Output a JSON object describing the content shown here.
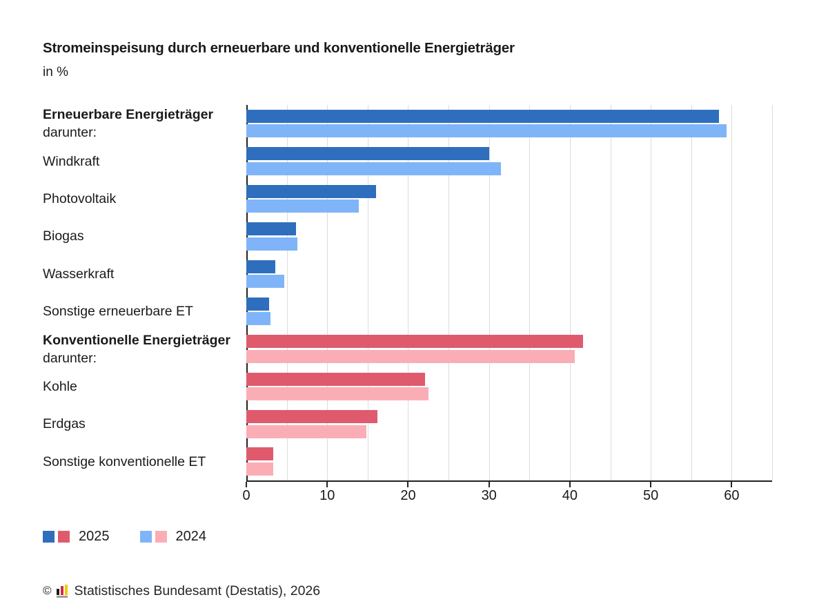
{
  "header": {
    "title": "Stromeinspeisung durch erneuerbare und konventionelle Energieträger",
    "subtitle": "in %"
  },
  "chart_data": {
    "type": "bar",
    "orientation": "horizontal",
    "title": "Stromeinspeisung durch erneuerbare und konventionelle Energieträger",
    "unit": "in %",
    "xlim": [
      0,
      65
    ],
    "x_ticks": [
      0,
      10,
      20,
      30,
      40,
      50,
      60
    ],
    "gridline_step": 5,
    "grid_color": "#dcdcdc",
    "axis_color": "#222222",
    "legend_position": "bottom",
    "categories": [
      {
        "label": "Erneuerbare Energieträger",
        "sublabel": "darunter:",
        "bold": true,
        "group": "renewable"
      },
      {
        "label": "Windkraft",
        "sublabel": "",
        "bold": false,
        "group": "renewable"
      },
      {
        "label": "Photovoltaik",
        "sublabel": "",
        "bold": false,
        "group": "renewable"
      },
      {
        "label": "Biogas",
        "sublabel": "",
        "bold": false,
        "group": "renewable"
      },
      {
        "label": "Wasserkraft",
        "sublabel": "",
        "bold": false,
        "group": "renewable"
      },
      {
        "label": "Sonstige erneuerbare ET",
        "sublabel": "",
        "bold": false,
        "group": "renewable"
      },
      {
        "label": "Konventionelle Energieträger",
        "sublabel": "darunter:",
        "bold": true,
        "group": "conventional"
      },
      {
        "label": "Kohle",
        "sublabel": "",
        "bold": false,
        "group": "conventional"
      },
      {
        "label": "Erdgas",
        "sublabel": "",
        "bold": false,
        "group": "conventional"
      },
      {
        "label": "Sonstige konventionelle ET",
        "sublabel": "",
        "bold": false,
        "group": "conventional"
      }
    ],
    "series": [
      {
        "name": "2025",
        "colors": {
          "renewable": "#2e6ebd",
          "conventional": "#e05a6d"
        },
        "values": [
          58.4,
          30.0,
          16.0,
          6.1,
          3.6,
          2.8,
          41.6,
          22.1,
          16.2,
          3.3
        ]
      },
      {
        "name": "2024",
        "colors": {
          "renewable": "#7fb5f8",
          "conventional": "#fbadb6"
        },
        "values": [
          59.4,
          31.5,
          13.9,
          6.3,
          4.7,
          3.0,
          40.6,
          22.5,
          14.8,
          3.3
        ]
      }
    ]
  },
  "legend": {
    "items": [
      {
        "label": "2025",
        "swatches": [
          "#2e6ebd",
          "#e05a6d"
        ]
      },
      {
        "label": "2024",
        "swatches": [
          "#7fb5f8",
          "#fbadb6"
        ]
      }
    ]
  },
  "footer": {
    "copyright": "©",
    "logo_colors": [
      "#1a1a1a",
      "#d02b3f",
      "#f7c600"
    ],
    "source": "Statistisches Bundesamt (Destatis), 2026"
  }
}
